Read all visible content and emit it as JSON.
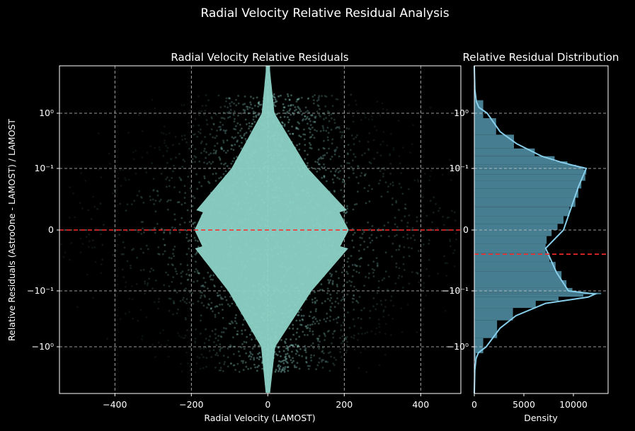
{
  "suptitle": "Radial Velocity Relative Residual Analysis",
  "colors": {
    "background": "#000000",
    "scatter": "#8dd3c7",
    "reference_line": "#ff2a2a",
    "hist_fill": "#4f8ba0",
    "kde": "#87ceeb",
    "grid": "#cccccc"
  },
  "chart_data": [
    {
      "type": "scatter",
      "title": "Radial Velocity Relative Residuals",
      "xlabel": "Radial Velocity (LAMOST)",
      "ylabel": "Relative Residuals (AstroOne - LAMOST) / LAMOST",
      "xlim": [
        -545,
        505
      ],
      "yscale": "symlog",
      "ylim": [
        -5,
        5
      ],
      "xticks": [
        -400,
        -200,
        0,
        200,
        400
      ],
      "xtick_labels": [
        "−400",
        "−200",
        "0",
        "200",
        "400"
      ],
      "yticks": [
        1,
        0.1,
        0,
        -0.1,
        -1
      ],
      "ytick_labels": [
        "10⁰",
        "10⁻¹",
        "0",
        "−10⁻¹",
        "−10⁰"
      ],
      "reference_line": {
        "y": 0,
        "style": "dashed",
        "color": "red"
      },
      "grid": true
    },
    {
      "type": "histogram",
      "orientation": "horizontal",
      "title": "Relative Residual Distribution",
      "xlabel": "Density",
      "xlim": [
        0,
        13500
      ],
      "xticks": [
        0,
        5000,
        10000
      ],
      "xtick_labels": [
        "0",
        "5000",
        "10000"
      ],
      "ylim": [
        -5,
        5
      ],
      "yscale": "symlog",
      "yticks": [
        1,
        0.1,
        0,
        -0.1,
        -1
      ],
      "ytick_labels": [
        "10⁰",
        "10⁻¹",
        "0",
        "−10⁻¹",
        "−10⁰"
      ],
      "reference_line": {
        "y": -0.02,
        "style": "dashed",
        "color": "red"
      },
      "kde": {
        "y": [
          5,
          3,
          2,
          1.5,
          1,
          0.7,
          0.5,
          0.3,
          0.2,
          0.15,
          0.1,
          0.07,
          0,
          -0.03,
          -0.07,
          -0.1,
          -0.15,
          -0.2,
          -0.3,
          -0.5,
          -0.7,
          -1,
          -1.5,
          -2,
          -3,
          -5
        ],
        "density": [
          0,
          60,
          200,
          450,
          1300,
          2600,
          4300,
          6800,
          8800,
          10000,
          11300,
          10500,
          9000,
          7200,
          8300,
          9500,
          12200,
          11500,
          7200,
          4200,
          2600,
          1200,
          420,
          180,
          50,
          0
        ]
      },
      "hist": {
        "y": [
          3,
          1.2,
          0.8,
          0.5,
          0.35,
          0.25,
          0.18,
          0.14,
          0.11,
          0.095,
          0.085,
          0.075,
          0.06,
          0.045,
          0.03,
          0.015,
          0.005,
          -0.005,
          -0.015,
          -0.03,
          -0.045,
          -0.06,
          -0.075,
          -0.09,
          -0.105,
          -0.12,
          -0.14,
          -0.17,
          -0.22,
          -0.3,
          -0.45,
          -0.7,
          -1.1,
          -2
        ],
        "density": [
          100,
          900,
          2200,
          4000,
          6100,
          8100,
          9400,
          10300,
          11000,
          11300,
          11200,
          10800,
          10500,
          10200,
          9600,
          9000,
          8400,
          7800,
          7300,
          7200,
          7600,
          8200,
          8800,
          9300,
          9900,
          10600,
          12800,
          11000,
          8500,
          6200,
          3900,
          2300,
          900,
          150
        ]
      },
      "grid": true
    }
  ]
}
